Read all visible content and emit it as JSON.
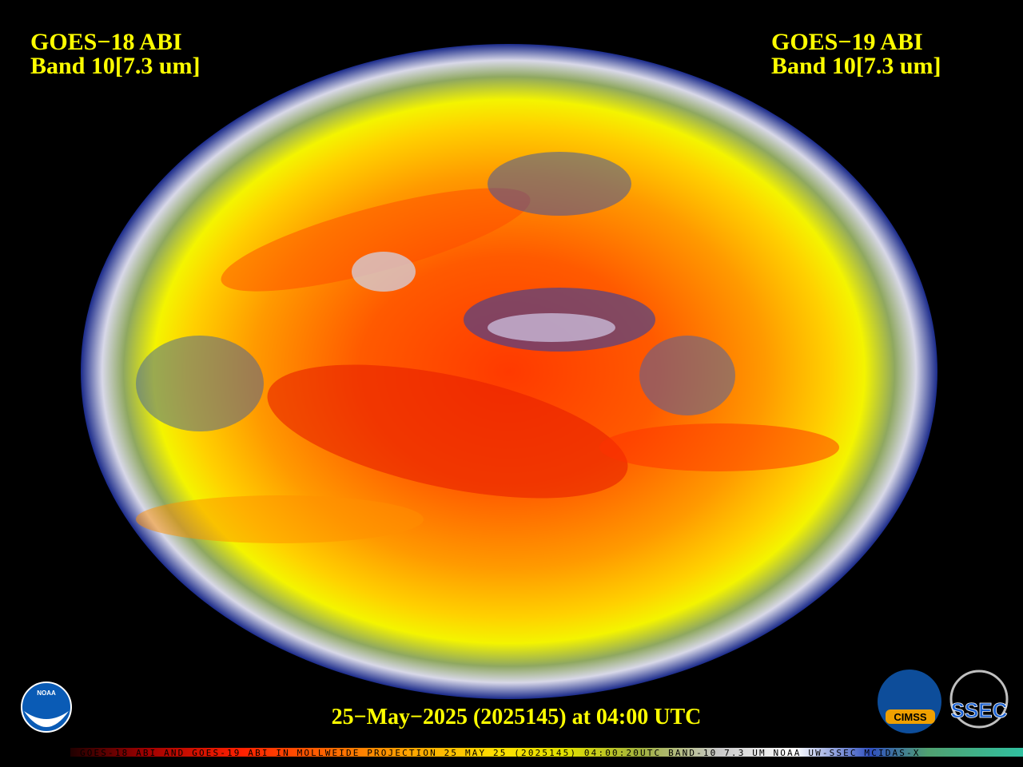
{
  "header": {
    "left": {
      "satellite": "GOES−18 ABI",
      "band": "Band 10[7.3 um]"
    },
    "right": {
      "satellite": "GOES−19 ABI",
      "band": "Band 10[7.3 um]"
    }
  },
  "timestamp": "25−May−2025 (2025145) at 04:00 UTC",
  "footer": "GOES-18 ABI AND GOES-19 ABI IN MOLLWEIDE PROJECTION 25 MAY 25 (2025145) 04:00:20UTC BAND-10 7.3 UM NOAA UW-SSEC MCIDAS-X",
  "logos": {
    "noaa": "NOAA",
    "cimss": "CIMSS",
    "ssec": "SSEC"
  }
}
